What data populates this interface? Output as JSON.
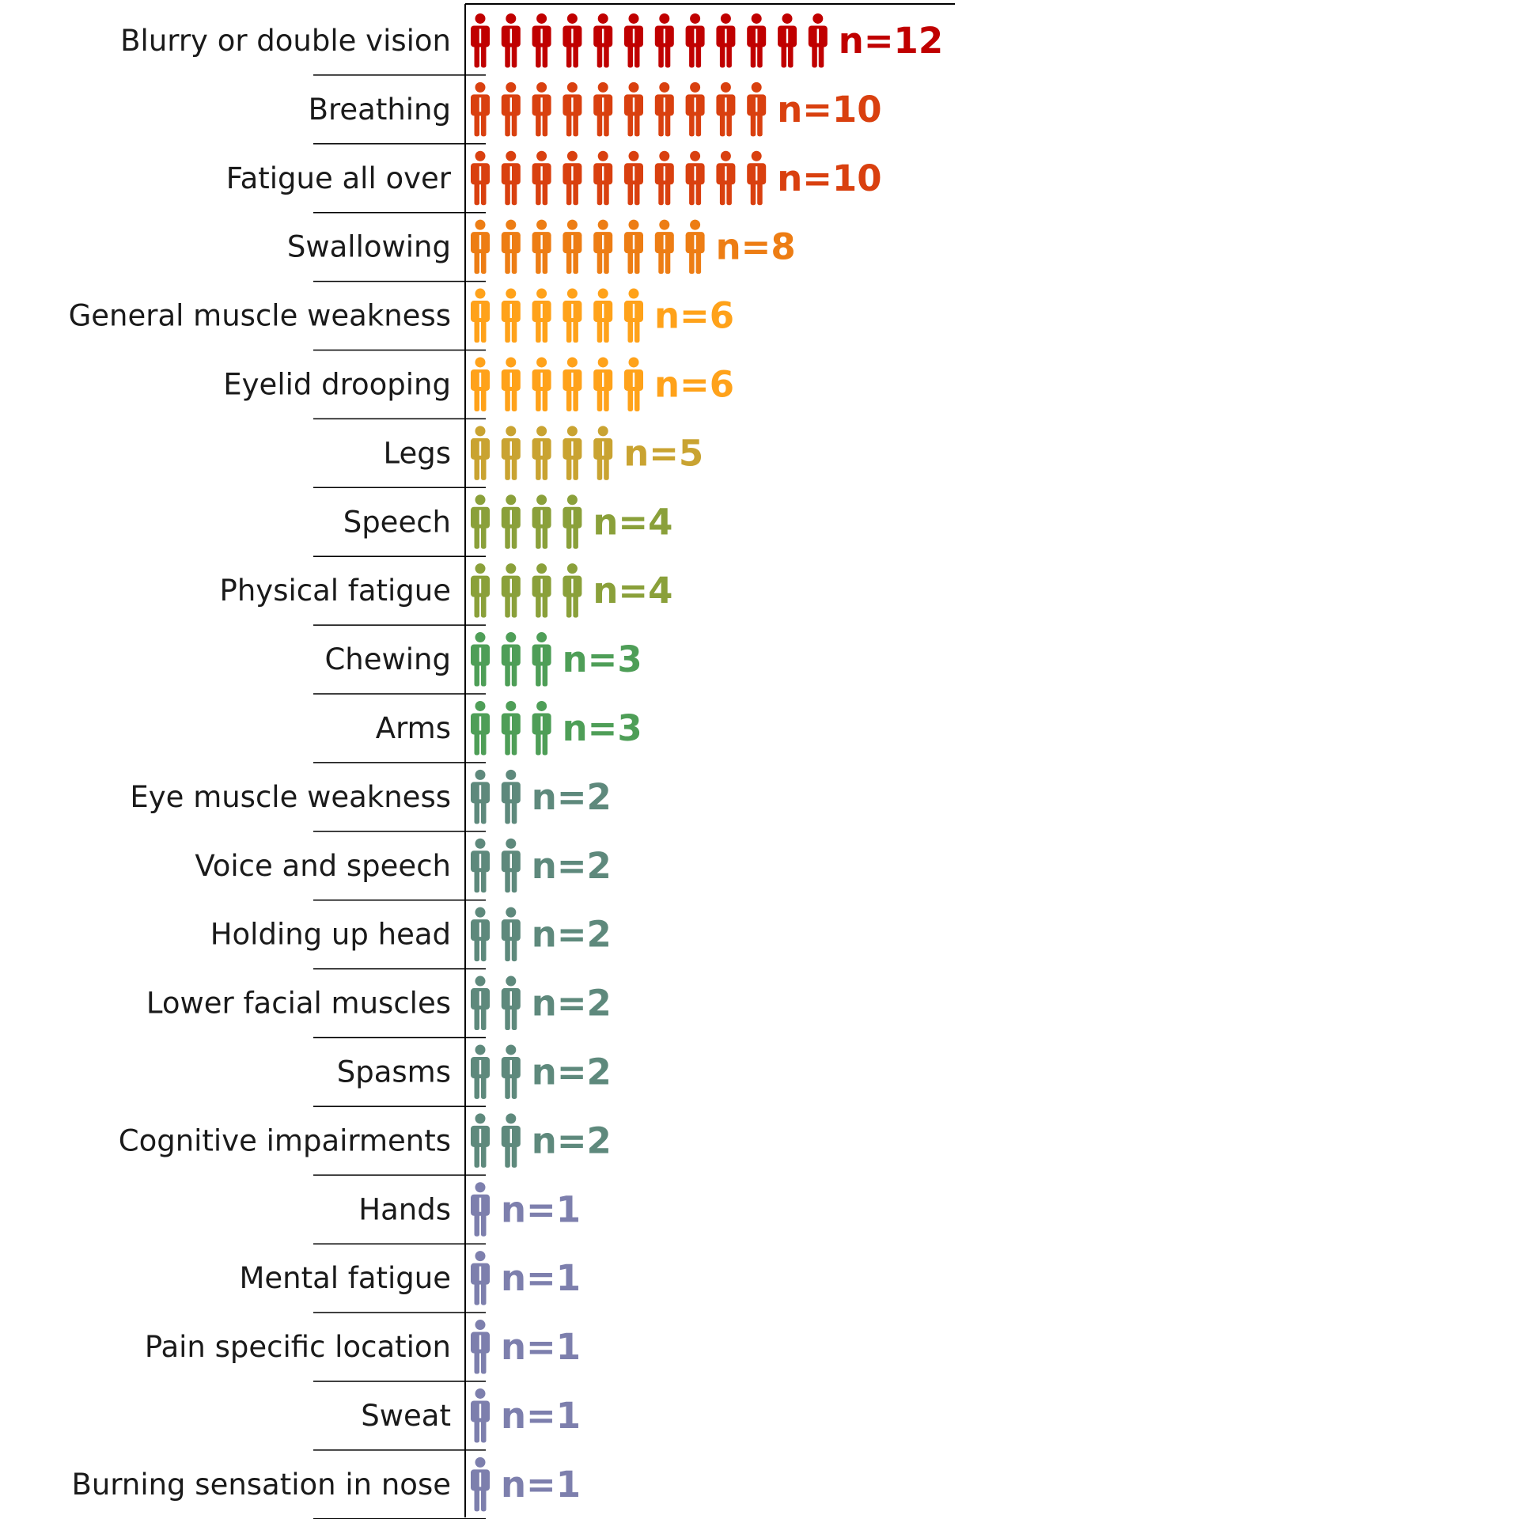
{
  "chart_data": {
    "type": "bar",
    "title": "",
    "xlabel": "",
    "ylabel": "",
    "unit": "people",
    "count_prefix": "n=",
    "bars": [
      {
        "category": "Blurry or double vision",
        "value": 12,
        "color": "#C00000"
      },
      {
        "category": "Breathing",
        "value": 10,
        "color": "#D9400F"
      },
      {
        "category": "Fatigue all over",
        "value": 10,
        "color": "#D9400F"
      },
      {
        "category": "Swallowing",
        "value": 8,
        "color": "#ED7D14"
      },
      {
        "category": "General muscle weakness",
        "value": 6,
        "color": "#FFA21A"
      },
      {
        "category": "Eyelid drooping",
        "value": 6,
        "color": "#FFA21A"
      },
      {
        "category": "Legs",
        "value": 5,
        "color": "#C9A331"
      },
      {
        "category": "Speech",
        "value": 4,
        "color": "#8AA03A"
      },
      {
        "category": "Physical fatigue",
        "value": 4,
        "color": "#8AA03A"
      },
      {
        "category": "Chewing",
        "value": 3,
        "color": "#4E9E57"
      },
      {
        "category": "Arms",
        "value": 3,
        "color": "#4E9E57"
      },
      {
        "category": "Eye muscle weakness",
        "value": 2,
        "color": "#5E897C"
      },
      {
        "category": "Voice and speech",
        "value": 2,
        "color": "#5E897C"
      },
      {
        "category": "Holding up head",
        "value": 2,
        "color": "#5E897C"
      },
      {
        "category": "Lower facial muscles",
        "value": 2,
        "color": "#5E897C"
      },
      {
        "category": "Spasms",
        "value": 2,
        "color": "#5E897C"
      },
      {
        "category": "Cognitive impairments",
        "value": 2,
        "color": "#5E897C"
      },
      {
        "category": "Hands",
        "value": 1,
        "color": "#7D7FAD"
      },
      {
        "category": "Mental fatigue",
        "value": 1,
        "color": "#7D7FAD"
      },
      {
        "category": "Pain specific location",
        "value": 1,
        "color": "#7D7FAD"
      },
      {
        "category": "Sweat",
        "value": 1,
        "color": "#7D7FAD"
      },
      {
        "category": "Burning sensation in nose",
        "value": 1,
        "color": "#7D7FAD"
      }
    ]
  }
}
